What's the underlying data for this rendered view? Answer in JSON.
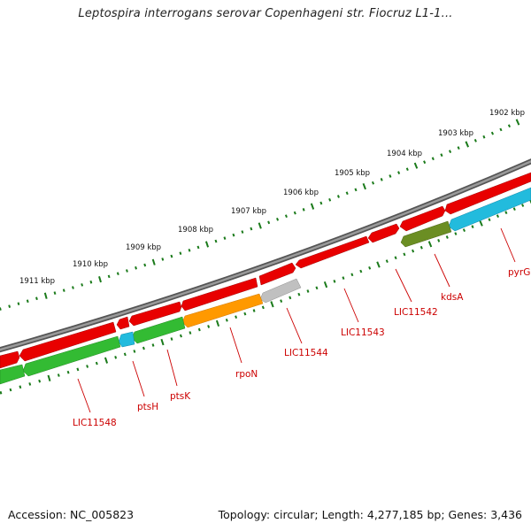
{
  "title": "Leptospira interrogans serovar Copenhageni str. Fiocruz L1-1...",
  "footer": {
    "accession": "Accession: NC_005823",
    "summary": "Topology: circular; Length: 4,277,185 bp; Genes: 3,436"
  },
  "colors": {
    "backbone": "#7a7a7a",
    "tick": "#1a7a1a",
    "label": "#cc0000",
    "red_gene": "#e80000",
    "green_gene": "#33bb33",
    "cyan_gene": "#22bbdd",
    "orange_gene": "#ff9900",
    "gray_gene": "#c0c0c0",
    "olive_gene": "#6b8e23"
  },
  "kbp_labels": [
    "1902 kbp",
    "1903 kbp",
    "1904 kbp",
    "1905 kbp",
    "1906 kbp",
    "1907 kbp",
    "1908 kbp",
    "1909 kbp",
    "1910 kbp",
    "1911 kbp"
  ],
  "gene_labels": [
    "pyrG",
    "kdsA",
    "LIC11542",
    "LIC11543",
    "LIC11544",
    "rpoN",
    "ptsK",
    "ptsH",
    "LIC11548"
  ]
}
